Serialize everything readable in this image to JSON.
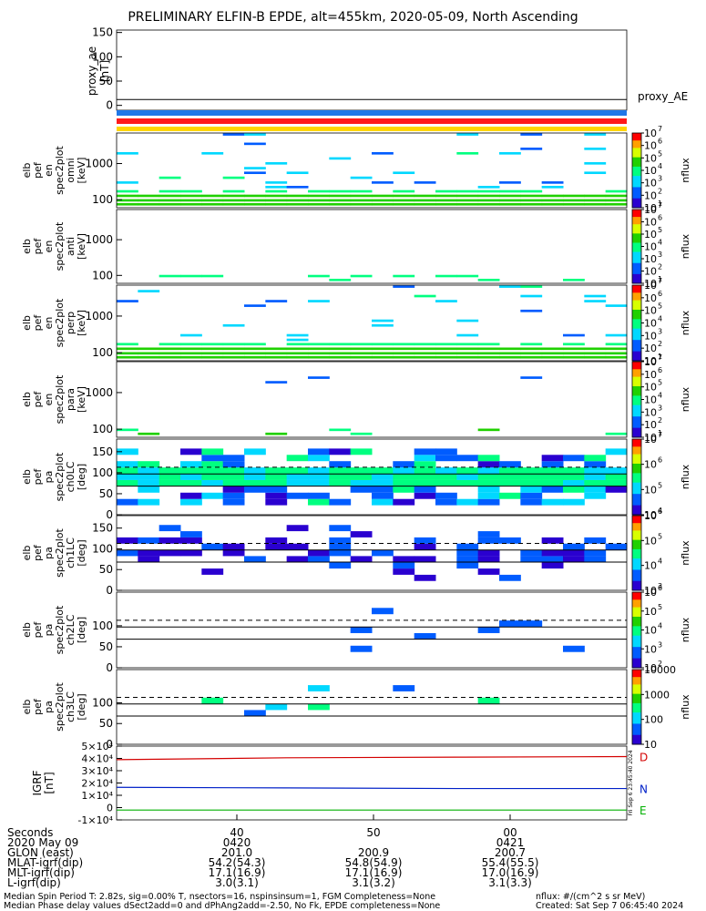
{
  "title": "PRELIMINARY ELFIN-B EPDE, alt=455km, 2020-05-09, North Ascending",
  "colors": {
    "ae_black": "#000000",
    "bar_blue": "#1f77e8",
    "bar_red": "#ff1a1a",
    "bar_yellow": "#ffd600",
    "grf_D": "#d40000",
    "grf_N": "#0020c8",
    "grf_E": "#00b000"
  },
  "chart_data": [
    {
      "type": "line",
      "name": "proxy_ae",
      "ylabel": [
        "proxy_ae",
        "[nT]"
      ],
      "yticks": [
        "150",
        "100",
        "50",
        "0"
      ],
      "ylim": [
        -10,
        155
      ],
      "legend": "proxy_AE",
      "values_constant": 12
    },
    {
      "type": "heatmap",
      "name": "pef_en_spec2plot_omni",
      "ylabel": [
        "elb",
        "pef",
        "en",
        "spec2plot",
        "omni",
        "[keV]"
      ],
      "yticks": [
        "1000",
        "100"
      ],
      "ylim_keV": [
        60,
        7000
      ],
      "cbar_label": "nflux",
      "cbar_ticks": [
        "10",
        "10",
        "10",
        "10",
        "10",
        "10",
        "10"
      ],
      "cbar_exps": [
        "7",
        "6",
        "5",
        "4",
        "3",
        "2",
        "1"
      ]
    },
    {
      "type": "heatmap",
      "name": "pef_en_spec2plot_anti",
      "ylabel": [
        "elb",
        "pef",
        "en",
        "spec2plot",
        "anti",
        "[keV]"
      ],
      "yticks": [
        "1000",
        "100"
      ],
      "cbar_label": "nflux",
      "cbar_ticks": [
        "10",
        "10",
        "10",
        "10",
        "10",
        "10",
        "10"
      ],
      "cbar_exps": [
        "7",
        "6",
        "5",
        "4",
        "3",
        "2",
        "1"
      ]
    },
    {
      "type": "heatmap",
      "name": "pef_en_spec2plot_perp",
      "ylabel": [
        "elb",
        "pef",
        "en",
        "spec2plot",
        "perp",
        "[keV]"
      ],
      "yticks": [
        "1000",
        "100"
      ],
      "cbar_label": "nflux",
      "cbar_ticks": [
        "10",
        "10",
        "10",
        "10",
        "10",
        "10",
        "10"
      ],
      "cbar_exps": [
        "7",
        "6",
        "5",
        "4",
        "3",
        "2",
        "1"
      ]
    },
    {
      "type": "heatmap",
      "name": "pef_en_spec2plot_para",
      "ylabel": [
        "elb",
        "pef",
        "en",
        "spec2plot",
        "para",
        "[keV]"
      ],
      "yticks": [
        "1000",
        "100"
      ],
      "cbar_label": "nflux",
      "cbar_ticks": [
        "10",
        "10",
        "10",
        "10",
        "10",
        "10",
        "10"
      ],
      "cbar_exps": [
        "7",
        "6",
        "5",
        "4",
        "3",
        "2",
        "1"
      ]
    },
    {
      "type": "heatmap",
      "name": "pef_pa_spec2plot_ch0LC",
      "ylabel": [
        "elb",
        "pef",
        "pa",
        "spec2plot",
        "ch0LC",
        "[deg]"
      ],
      "yticks": [
        "150",
        "100",
        "50",
        "0"
      ],
      "ylim_deg": [
        0,
        180
      ],
      "cbar_label": "nflux",
      "cbar_ticks": [
        "10",
        "10",
        "10",
        "10"
      ],
      "cbar_exps": [
        "7",
        "6",
        "5",
        "4"
      ]
    },
    {
      "type": "heatmap",
      "name": "pef_pa_spec2plot_ch1LC",
      "ylabel": [
        "elb",
        "pef",
        "pa",
        "spec2plot",
        "ch1LC",
        "[deg]"
      ],
      "yticks": [
        "150",
        "100",
        "50",
        "0"
      ],
      "ylim_deg": [
        0,
        180
      ],
      "cbar_label": "nflux",
      "cbar_ticks": [
        "10",
        "10",
        "10",
        "10"
      ],
      "cbar_exps": [
        "6",
        "5",
        "4",
        "3"
      ]
    },
    {
      "type": "heatmap",
      "name": "pef_pa_spec2plot_ch2LC",
      "ylabel": [
        "elb",
        "pef",
        "pa",
        "spec2plot",
        "ch2LC",
        "[deg]"
      ],
      "yticks": [
        "100",
        "50",
        "0"
      ],
      "ylim_deg": [
        0,
        180
      ],
      "cbar_label": "nflux",
      "cbar_ticks": [
        "10",
        "10",
        "10",
        "10",
        "10"
      ],
      "cbar_exps": [
        "6",
        "5",
        "4",
        "3",
        "2"
      ]
    },
    {
      "type": "heatmap",
      "name": "pef_pa_spec2plot_ch3LC",
      "ylabel": [
        "elb",
        "pef",
        "pa",
        "spec2plot",
        "ch3LC",
        "[deg]"
      ],
      "yticks": [
        "100",
        "50",
        "0"
      ],
      "ylim_deg": [
        0,
        180
      ],
      "cbar_label": "nflux",
      "cbar_ticks": [
        "10000",
        "1000",
        "100",
        "10"
      ]
    },
    {
      "type": "line",
      "name": "IGRF",
      "ylabel": [
        "IGRF",
        "[nT]"
      ],
      "yticks": [
        "5×10⁴",
        "4×10⁴",
        "3×10⁴",
        "2×10⁴",
        "1×10⁴",
        "0",
        "-1×10⁴"
      ],
      "ylim": [
        -10000,
        50000
      ],
      "series": [
        {
          "name": "D",
          "values": [
            39000,
            40500,
            41000,
            41500
          ]
        },
        {
          "name": "N",
          "values": [
            16500,
            16000,
            15500,
            15500
          ]
        },
        {
          "name": "E",
          "values": [
            -2000,
            -2000,
            -2000,
            -2000
          ]
        }
      ],
      "stamp": "Fri Sep  6 23:45:40 2024"
    }
  ],
  "xaxis": {
    "rows": [
      {
        "label": "Seconds",
        "values": [
          "40",
          "50",
          "00"
        ]
      },
      {
        "label": "2020 May 09",
        "values": [
          "0420",
          "",
          "0421"
        ]
      },
      {
        "label": "GLON (east)",
        "values": [
          "201.0",
          "200.9",
          "200.7"
        ]
      },
      {
        "label": "MLAT-igrf(dip)",
        "values": [
          "54.2(54.3)",
          "54.8(54.9)",
          "55.4(55.5)"
        ]
      },
      {
        "label": "MLT-igrf(dip)",
        "values": [
          "17.1(16.9)",
          "17.1(16.9)",
          "17.0(16.9)"
        ]
      },
      {
        "label": "L-igrf(dip)",
        "values": [
          "3.0(3.1)",
          "3.1(3.2)",
          "3.1(3.3)"
        ]
      }
    ]
  },
  "footer": {
    "line1": "Median Spin Period T: 2.82s, sig=0.00% T, nsectors=16, nspinsinsum=1, FGM Completeness=None",
    "line2": "Median Phase delay values dSect2add=0 and dPhAng2add=-2.50, No Fk, EPDE completeness=None",
    "units": "nflux: #/(cm^2 s sr MeV)",
    "created": "Created: Sat Sep  7 06:45:40 2024"
  }
}
